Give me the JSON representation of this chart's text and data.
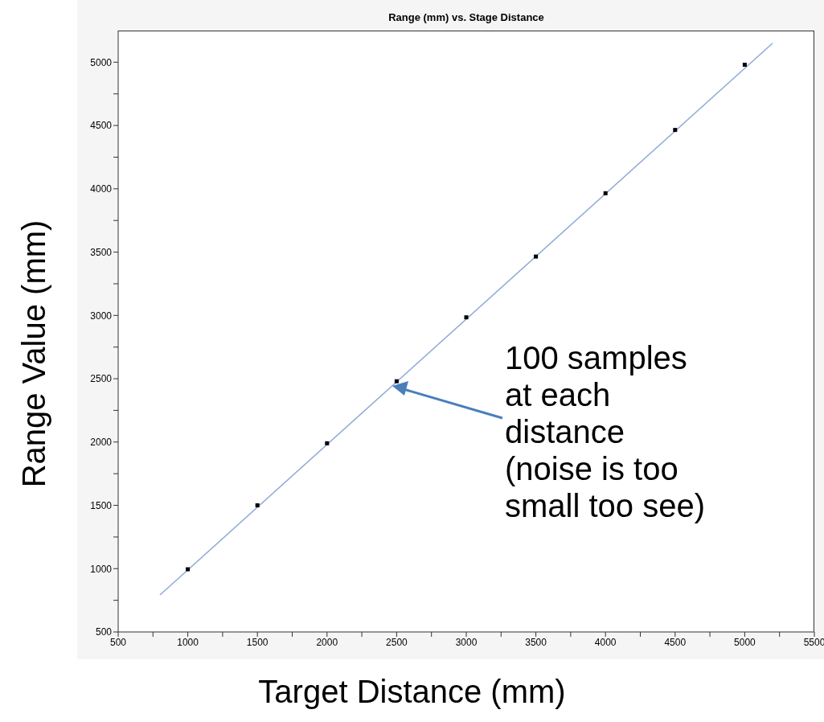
{
  "chart_data": {
    "type": "scatter",
    "title": "Range (mm) vs. Stage Distance",
    "xlabel": "Target Distance (mm)",
    "ylabel": "Range Value (mm)",
    "x": [
      1000,
      1500,
      2000,
      2500,
      3000,
      3500,
      4000,
      4500,
      5000
    ],
    "series": [
      {
        "marker": "square",
        "color": "#000000",
        "values": [
          995,
          1500,
          1990,
          2480,
          2985,
          3465,
          3965,
          4465,
          4980
        ]
      },
      {
        "type": "line",
        "marker": "none",
        "color": "#8fa8d8",
        "x": [
          800,
          5200
        ],
        "values": [
          792,
          5150
        ]
      }
    ],
    "legend": false,
    "grid": false,
    "xlim": [
      500,
      5500
    ],
    "xticks": [
      500,
      {
        "value": 750,
        "label": null
      },
      1000,
      {
        "value": 1250,
        "label": null
      },
      1500,
      {
        "value": 1750,
        "label": null
      },
      2000,
      {
        "value": 2250,
        "label": null
      },
      2500,
      {
        "value": 2750,
        "label": null
      },
      3000,
      {
        "value": 3250,
        "label": null
      },
      3500,
      {
        "value": 3750,
        "label": null
      },
      4000,
      {
        "value": 4250,
        "label": null
      },
      4500,
      {
        "value": 4750,
        "label": null
      },
      5000,
      {
        "value": 5250,
        "label": null
      },
      5500
    ],
    "ylim": [
      500,
      5250
    ],
    "yticks": [
      500,
      {
        "value": 750,
        "label": null
      },
      1000,
      {
        "value": 1250,
        "label": null
      },
      1500,
      {
        "value": 1750,
        "label": null
      },
      2000,
      {
        "value": 2250,
        "label": null
      },
      2500,
      {
        "value": 2750,
        "label": null
      },
      3000,
      {
        "value": 3250,
        "label": null
      },
      3500,
      {
        "value": 3750,
        "label": null
      },
      4000,
      {
        "value": 4250,
        "label": null
      },
      4500,
      {
        "value": 4750,
        "label": null
      },
      5000
    ],
    "annotations": [
      "100 samples\nat each\ndistance\n(noise is too\nsmall too see)"
    ]
  }
}
